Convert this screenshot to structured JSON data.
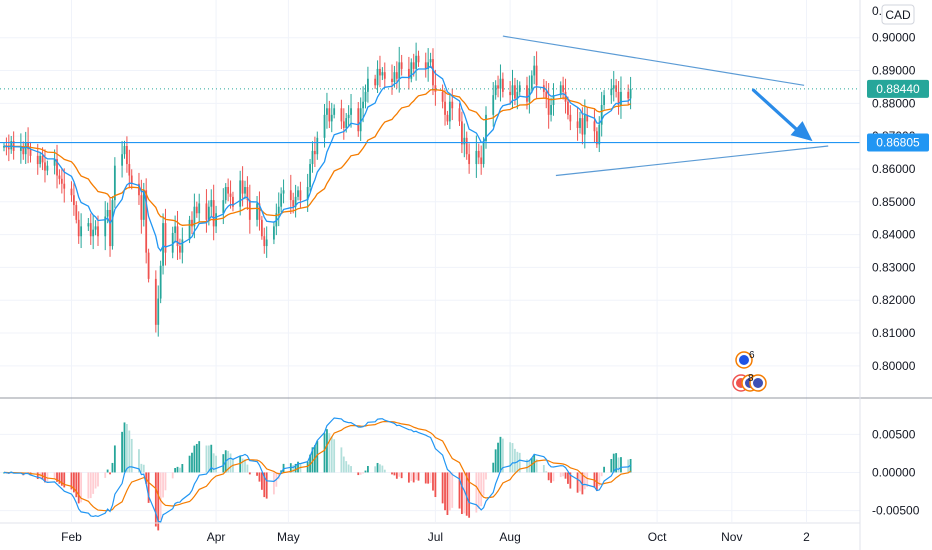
{
  "chart_data": [
    {
      "type": "candlestick",
      "currency_label": "CAD",
      "y_axis_top_partial": "0.",
      "x_ticks": [
        {
          "label": "Feb",
          "day": 31
        },
        {
          "label": "Apr",
          "day": 91
        },
        {
          "label": "May",
          "day": 121
        },
        {
          "label": "Jul",
          "day": 182
        },
        {
          "label": "Aug",
          "day": 213
        },
        {
          "label": "Oct",
          "day": 274
        },
        {
          "label": "Nov",
          "day": 305
        },
        {
          "label": "2",
          "day": 336
        }
      ],
      "ylim": [
        0.7905,
        0.9115
      ],
      "y_ticks": [
        "0.80000",
        "0.81000",
        "0.82000",
        "0.83000",
        "0.84000",
        "0.85000",
        "0.86000",
        "0.87000",
        "0.88000",
        "0.89000",
        "0.90000"
      ],
      "last_price": "0.88440",
      "last_price_value": 0.8844,
      "horizontal_level": "0.86805",
      "horizontal_level_value": 0.86805,
      "closes": [
        0.867,
        0.8665,
        0.866,
        0.8685,
        0.8655,
        0.8665,
        0.8645,
        0.868,
        0.866,
        0.864,
        0.8615,
        0.864,
        0.862,
        0.8595,
        0.861,
        0.863,
        0.858,
        0.857,
        0.8555,
        0.854,
        0.852,
        0.849,
        0.8445,
        0.8395,
        0.8425,
        0.8435,
        0.8395,
        0.8415,
        0.8425,
        0.8395,
        0.8455,
        0.8475,
        0.8365,
        0.8505,
        0.861,
        0.8645,
        0.867,
        0.8615,
        0.858,
        0.8555,
        0.852,
        0.8445,
        0.8535,
        0.8345,
        0.8265,
        0.8125,
        0.8205,
        0.8305,
        0.8435,
        0.8345,
        0.8405,
        0.8425,
        0.8365,
        0.8345,
        0.8385,
        0.8445,
        0.8425,
        0.8485,
        0.8465,
        0.8495,
        0.8445,
        0.8485,
        0.8505,
        0.8425,
        0.8465,
        0.8505,
        0.8545,
        0.8525,
        0.8515,
        0.8485,
        0.8565,
        0.8525,
        0.8545,
        0.8505,
        0.8445,
        0.8495,
        0.8445,
        0.8395,
        0.8365,
        0.8385,
        0.8425,
        0.8465,
        0.8485,
        0.8525,
        0.8535,
        0.8505,
        0.8485,
        0.8515,
        0.8535,
        0.8505,
        0.8545,
        0.8615,
        0.8655,
        0.8645,
        0.8695,
        0.8765,
        0.8785,
        0.8745,
        0.8765,
        0.8785,
        0.8745,
        0.8725,
        0.8755,
        0.8765,
        0.8785,
        0.8715,
        0.8785,
        0.8805,
        0.8835,
        0.8875,
        0.8855,
        0.8905,
        0.8885,
        0.8895,
        0.8875,
        0.8865,
        0.8895,
        0.8875,
        0.8925,
        0.8905,
        0.8875,
        0.8925,
        0.8905,
        0.8945,
        0.8925,
        0.8905,
        0.8925,
        0.8935,
        0.8855,
        0.8835,
        0.8805,
        0.8765,
        0.8745,
        0.8805,
        0.8785,
        0.8745,
        0.8675,
        0.8695,
        0.8645,
        0.8615,
        0.8655,
        0.8635,
        0.8615,
        0.8685,
        0.8765,
        0.8825,
        0.8855,
        0.8845,
        0.8875,
        0.8835,
        0.8825,
        0.8855,
        0.8815,
        0.8835,
        0.8855,
        0.8805,
        0.8845,
        0.8885,
        0.8915,
        0.8855,
        0.8835,
        0.8815,
        0.8765,
        0.8795,
        0.8825,
        0.8855,
        0.8835,
        0.8805,
        0.8765,
        0.8745,
        0.8725,
        0.8755,
        0.8705,
        0.8765,
        0.8745,
        0.8715,
        0.8675,
        0.8735,
        0.8795,
        0.8825,
        0.8845,
        0.8855,
        0.8835,
        0.8795,
        0.8835,
        0.8815,
        0.8844
      ],
      "oscillator": {
        "ylim": [
          -0.0065,
          0.0095
        ],
        "y_ticks": [
          "0.00500",
          "0.00000",
          "-0.00500"
        ],
        "y_tick_values": [
          0.005,
          0.0,
          -0.005
        ]
      },
      "badges": [
        {
          "label": "6",
          "color": "#1e53e5"
        },
        {
          "label": "8",
          "color": "#ef5350"
        }
      ],
      "colors": {
        "up": "#26a69a",
        "down": "#ef5350",
        "ma_fast": "#2196f3",
        "ma_slow": "#f57c00",
        "trendline": "#5b9bd5",
        "level": "#2196f3",
        "arrow": "#2a8be8",
        "price_tag": "#26a69a"
      }
    }
  ]
}
